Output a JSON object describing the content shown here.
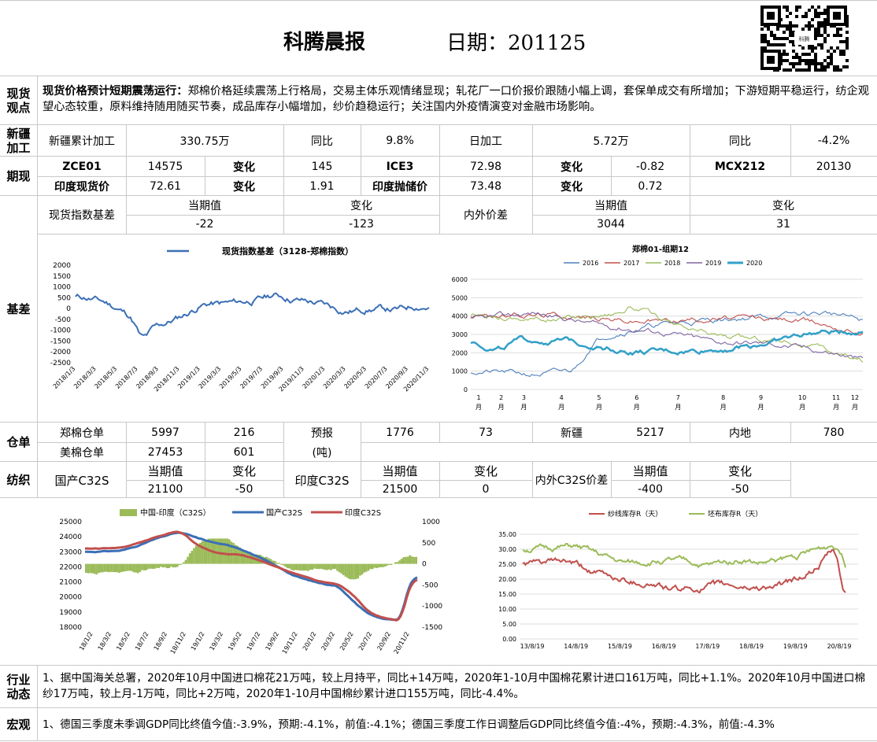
{
  "header": {
    "title": "科腾晨报",
    "date_label": "日期：201125",
    "qr_caption": "科腾"
  },
  "spot": {
    "label": "现货观点",
    "lead": "现货价格预计短期震荡运行：",
    "body": "郑棉价格延续震荡上行格局，交易主体乐观情绪显现；轧花厂一口价报价跟随小幅上调，套保单成交有所增加；下游短期平稳运行，纺企观望心态较重，原料维持随用随买节奏，成品库存小幅增加，纱价趋稳运行；关注国内外疫情演变对金融市场影响。"
  },
  "xinjiang": {
    "label": "新疆加工",
    "cells": [
      "新疆累计加工",
      "330.75万",
      "同比",
      "9.8%",
      "日加工",
      "5.72万",
      "同比",
      "-4.2%"
    ]
  },
  "futures": {
    "label": "期现",
    "row1": [
      "ZCE01",
      "14575",
      "变化",
      "145",
      "ICE3",
      "72.98",
      "变化",
      "-0.82",
      "MCX212",
      "20130"
    ],
    "row2": [
      "印度现货价",
      "72.61",
      "变化",
      "1.91",
      "印度抛储价",
      "73.48",
      "变化",
      "0.72"
    ]
  },
  "basis": {
    "label": "基差",
    "row1": [
      "当期值",
      "变化",
      "当期值",
      "变化"
    ],
    "row2": [
      "现货指数基差",
      "-22",
      "-123",
      "内外价差",
      "3044",
      "31"
    ]
  },
  "chart_basis": {
    "title": "现货指数基差（3128-郑棉指数）",
    "ylabels": [
      "2000",
      "1500",
      "1000",
      "500",
      "0",
      "-500",
      "-1000",
      "-1500",
      "-2000",
      "-2500"
    ],
    "xlabels": [
      "2018/1/3",
      "2018/3/3",
      "2018/5/3",
      "2018/7/3",
      "2018/9/3",
      "2018/11/3",
      "2019/1/3",
      "2019/3/3",
      "2019/5/3",
      "2019/7/3",
      "2019/9/3",
      "2019/11/3",
      "2020/1/3",
      "2020/3/3",
      "2020/5/3",
      "2020/7/3",
      "2020/9/3",
      "2020/11/3"
    ]
  },
  "chart_spread": {
    "title": "郑棉01-组期12",
    "legend": [
      "2016",
      "2017",
      "2018",
      "2019",
      "2020"
    ],
    "ylabels": [
      "6000",
      "5000",
      "4000",
      "3000",
      "2000",
      "1000",
      "0"
    ],
    "xnums": [
      "1",
      "2",
      "3",
      "4",
      "5",
      "6",
      "7",
      "8",
      "9",
      "10",
      "11",
      "12"
    ],
    "xunit": "月"
  },
  "warehouse": {
    "label": "仓单",
    "row1": [
      "郑棉仓单",
      "5997",
      "216",
      "预报",
      "1776",
      "73",
      "新疆",
      "5217",
      "内地",
      "780"
    ],
    "row2": [
      "美棉仓单",
      "27453",
      "601",
      "(吨)"
    ]
  },
  "yarn": {
    "label": "纺织",
    "cells": [
      "国产C32S",
      "当期值",
      "变化",
      "印度C32S",
      "当期值",
      "变化",
      "内外C32S价差",
      "当期值",
      "变化"
    ],
    "vals": [
      "21100",
      "-50",
      "21500",
      "0",
      "-400",
      "-50"
    ]
  },
  "chart_yarn": {
    "legend": [
      "中国-印度（C32S）",
      "国产C32S",
      "印度C32S"
    ],
    "yleft": [
      "25000",
      "24000",
      "23000",
      "22000",
      "21000",
      "20000",
      "19000",
      "18000"
    ],
    "yright": [
      "1000",
      "500",
      "0",
      "-500",
      "-1000",
      "-1500"
    ],
    "xlabels": [
      "18/1/2",
      "18/3/2",
      "18/5/2",
      "18/7/2",
      "18/9/2",
      "18/11/2",
      "19/1/2",
      "19/3/2",
      "19/5/2",
      "19/7/2",
      "19/9/2",
      "19/11/2",
      "20/1/2",
      "20/3/2",
      "20/5/2",
      "20/7/2",
      "20/9/2",
      "20/11/2"
    ]
  },
  "chart_stock": {
    "legend": [
      "纱线库存R（天）",
      "坯布库存R（天）"
    ],
    "ylabels": [
      "35.00",
      "30.00",
      "25.00",
      "20.00",
      "15.00",
      "10.00",
      "5.00",
      "0.00"
    ],
    "xlabels": [
      "13/8/19",
      "14/8/19",
      "15/8/19",
      "16/8/19",
      "17/8/19",
      "18/8/19",
      "19/8/19",
      "20/8/19"
    ]
  },
  "industry": {
    "label": "行业动态",
    "text": "1、据中国海关总署，2020年10月中国进口棉花21万吨，较上月持平，同比+14万吨，2020年1-10月中国棉花累计进口161万吨，同比+1.1%。2020年10月中国进口棉纱17万吨，较上月-1万吨，同比+2万吨，2020年1-10月中国棉纱累计进口155万吨，同比-4.4%。"
  },
  "macro": {
    "label": "宏观",
    "text": "1、德国三季度未季调GDP同比终值今值:-3.9%，预期:-4.1%，前值:-4.1%；德国三季度工作日调整后GDP同比终值今值:-4%，预期:-4.3%，前值:-4.3%"
  },
  "colors": {
    "basis_line": "#3b6fb6",
    "c2016": "#4f81bd",
    "c2017": "#c0504d",
    "c2018": "#9bbb59",
    "c2019": "#8064a2",
    "c2020": "#31a0c8",
    "bars": "#9bbb59",
    "domestic": "#3b6fb6",
    "india": "#c0504d",
    "yarn_stock": "#c0504d",
    "cloth_stock": "#9bbb59"
  }
}
